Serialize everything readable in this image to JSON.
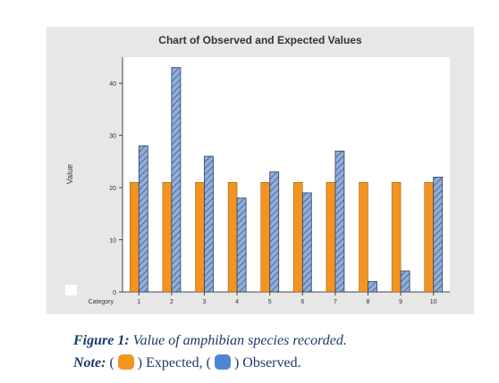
{
  "chart_data": {
    "type": "bar",
    "title": "Chart of Observed and Expected Values",
    "xlabel": "Category",
    "ylabel": "Value",
    "categories": [
      "1",
      "2",
      "3",
      "4",
      "5",
      "6",
      "7",
      "8",
      "9",
      "10"
    ],
    "ylim": [
      0,
      45
    ],
    "yticks": [
      0,
      10,
      20,
      30,
      40
    ],
    "grid": false,
    "series": [
      {
        "name": "Expected",
        "values": [
          21,
          21,
          21,
          21,
          21,
          21,
          21,
          21,
          21,
          21
        ],
        "color": "#f39322",
        "pattern": "solid"
      },
      {
        "name": "Observed",
        "values": [
          28,
          43,
          26,
          18,
          23,
          19,
          27,
          2,
          4,
          22
        ],
        "color": "#8eaede",
        "pattern": "hatched"
      }
    ]
  },
  "caption": {
    "label": "Figure 1:",
    "text": " Value of amphibian species recorded."
  },
  "note": {
    "label": "Note:",
    "open1": " (",
    "expected": ") Expected, (",
    "observed": ") Observed.",
    "expected_color": "#f39322",
    "observed_color": "#4f86d4"
  }
}
